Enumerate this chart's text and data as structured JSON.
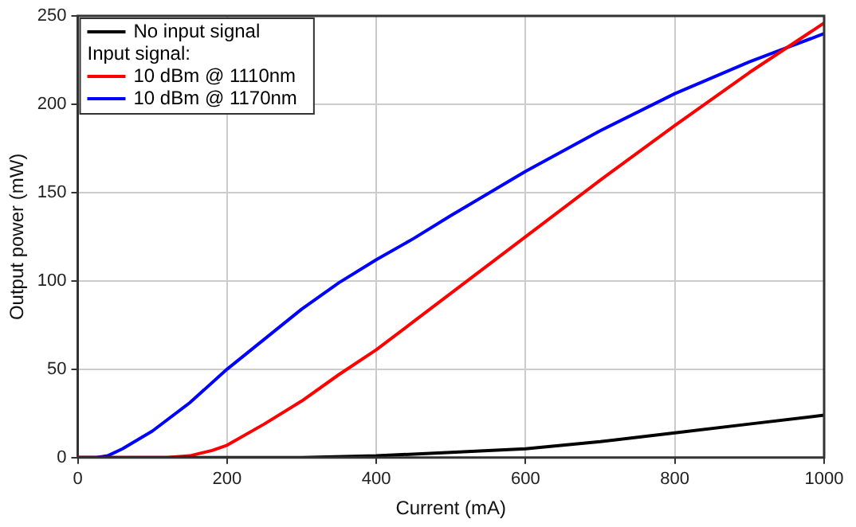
{
  "chart_data": {
    "type": "line",
    "xlabel": "Current (mA)",
    "ylabel": "Output power (mW)",
    "legend_title": "Input signal:",
    "legend": "top left",
    "grid": true,
    "marker": "none",
    "line_style": "solid",
    "xlim": [
      0,
      1000
    ],
    "xticks": [
      0,
      200,
      400,
      600,
      800,
      1000
    ],
    "ylim": [
      0,
      250
    ],
    "yticks": [
      0,
      50,
      100,
      150,
      200,
      250
    ],
    "series": [
      {
        "name": "No input signal",
        "color": "#000000",
        "x": [
          0,
          300,
          400,
          500,
          600,
          700,
          800,
          900,
          1000
        ],
        "values": [
          0,
          0,
          1,
          3,
          5,
          9,
          14,
          19,
          24
        ]
      },
      {
        "name": "10 dBm @ 1110nm",
        "color": "#ff0000",
        "x": [
          0,
          120,
          150,
          180,
          200,
          250,
          300,
          350,
          400,
          450,
          500,
          600,
          700,
          800,
          900,
          1000
        ],
        "values": [
          0,
          0,
          1,
          4,
          7,
          19,
          32,
          47,
          61,
          77,
          93,
          125,
          157,
          188,
          218,
          246
        ]
      },
      {
        "name": "10 dBm @ 1170nm",
        "color": "#0000ff",
        "x": [
          0,
          25,
          40,
          60,
          100,
          150,
          200,
          250,
          300,
          350,
          400,
          450,
          500,
          600,
          700,
          800,
          900,
          950,
          1000
        ],
        "values": [
          0,
          0,
          1,
          5,
          15,
          31,
          50,
          67,
          84,
          99,
          112,
          124,
          137,
          162,
          185,
          206,
          224,
          232,
          240
        ]
      }
    ]
  }
}
